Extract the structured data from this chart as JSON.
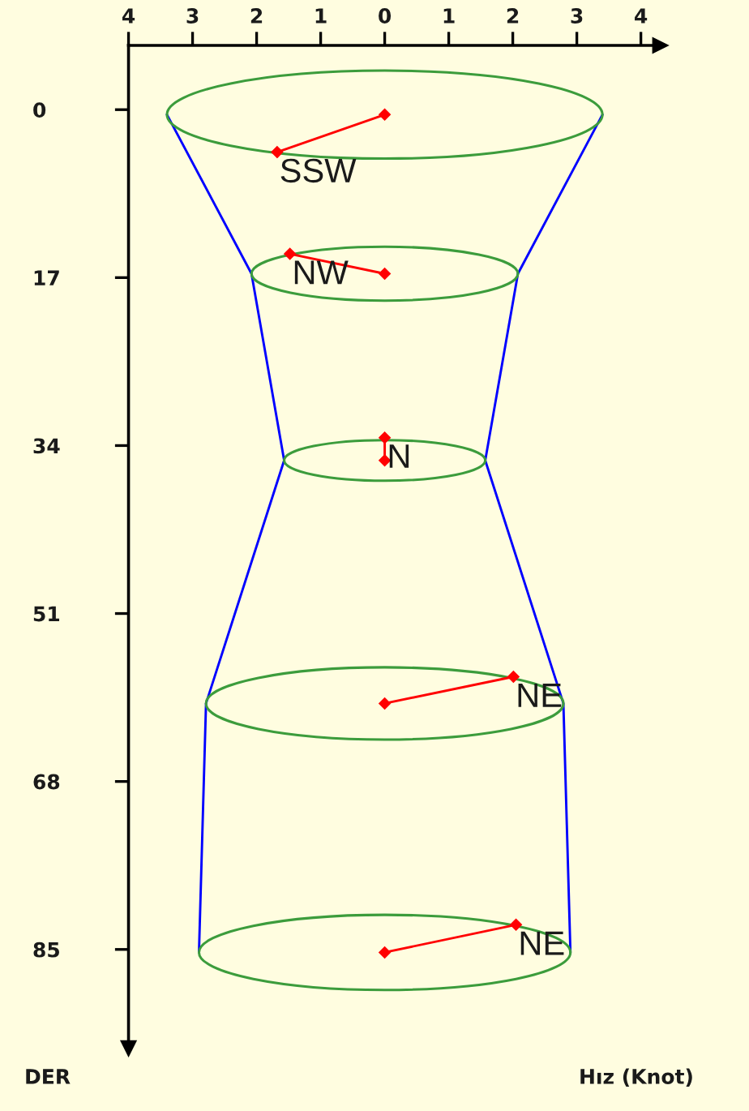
{
  "chart_data": {
    "type": "line",
    "xlabel": "Hız (Knot)",
    "ylabel": "DER",
    "xlim": [
      -4,
      4.3
    ],
    "xticks": [
      {
        "value": -4,
        "label": "4"
      },
      {
        "value": -3,
        "label": "3"
      },
      {
        "value": -2,
        "label": "2"
      },
      {
        "value": -1,
        "label": "1"
      },
      0,
      1,
      2,
      3,
      4
    ],
    "ylim": [
      95,
      -6.5
    ],
    "yticks": [
      0,
      17,
      34,
      51,
      68,
      85
    ],
    "series": [
      {
        "color": "#0000ff",
        "x": [
          -3.4,
          -2.08,
          -1.57,
          -2.79,
          -2.9
        ],
        "values": [
          0.5,
          16.6,
          35.5,
          60.1,
          85.3
        ]
      },
      {
        "color": "#0000ff",
        "x": [
          3.4,
          2.08,
          1.57,
          2.79,
          2.9
        ],
        "values": [
          0.5,
          16.6,
          35.5,
          60.1,
          85.3
        ]
      },
      {
        "color": "#ff0000",
        "marker": "diamond",
        "x": [
          0,
          -1.68
        ],
        "values": [
          0.5,
          4.3
        ]
      },
      {
        "color": "#ff0000",
        "marker": "diamond",
        "x": [
          0,
          -1.48
        ],
        "values": [
          16.6,
          14.6
        ]
      },
      {
        "color": "#ff0000",
        "marker": "diamond",
        "x": [
          0,
          0
        ],
        "values": [
          35.5,
          33.2
        ]
      },
      {
        "color": "#ff0000",
        "marker": "diamond",
        "x": [
          0,
          2.01
        ],
        "values": [
          60.1,
          57.4
        ]
      },
      {
        "color": "#ff0000",
        "marker": "diamond",
        "x": [
          0,
          2.05
        ],
        "values": [
          85.3,
          82.5
        ]
      }
    ],
    "annotations": [
      {
        "text": "SSW",
        "x": -1.68,
        "y": 4.3
      },
      {
        "text": "NW",
        "x": -1.48,
        "y": 14.6
      },
      {
        "text": "N",
        "x": 0,
        "y": 33.2
      },
      {
        "text": "NE",
        "x": 2.01,
        "y": 57.4
      },
      {
        "text": "NE",
        "x": 2.05,
        "y": 82.5
      }
    ]
  }
}
